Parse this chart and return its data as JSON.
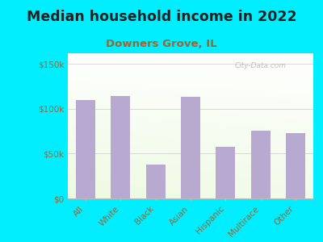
{
  "title": "Median household income in 2022",
  "subtitle": "Downers Grove, IL",
  "categories": [
    "All",
    "White",
    "Black",
    "Asian",
    "Hispanic",
    "Multirace",
    "Other"
  ],
  "values": [
    110000,
    114000,
    38000,
    113000,
    58000,
    76000,
    73000
  ],
  "bar_color": "#b8a9d0",
  "background_outer": "#00eeff",
  "background_chart_tl": "#e8f5e0",
  "background_chart_tr": "#f8fffa",
  "background_chart_br": "#ffffff",
  "title_color": "#222222",
  "subtitle_color": "#996633",
  "ytick_color": "#996633",
  "xtick_color": "#996633",
  "ytick_labels": [
    "$0",
    "$50k",
    "$100k",
    "$150k"
  ],
  "ytick_values": [
    0,
    50000,
    100000,
    150000
  ],
  "ylim": [
    0,
    162000
  ],
  "watermark": "City-Data.com",
  "title_fontsize": 12.5,
  "subtitle_fontsize": 9.5,
  "tick_fontsize": 7.5
}
